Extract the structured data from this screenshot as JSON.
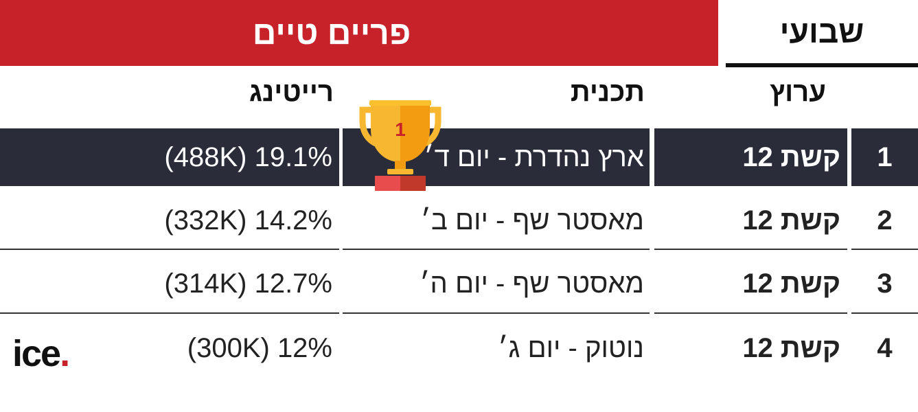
{
  "banner": {
    "title": "פריים טיים"
  },
  "tab": {
    "label": "שבועי"
  },
  "headers": {
    "channel": "ערוץ",
    "program": "תכנית",
    "rating": "רייטינג"
  },
  "rows": [
    {
      "rank": "1",
      "channel": "קשת 12",
      "program": "ארץ נהדרת - יום ד׳",
      "rating": "19.1% (488K)"
    },
    {
      "rank": "2",
      "channel": "קשת 12",
      "program": "מאסטר שף - יום ב׳",
      "rating": "14.2% (332K)"
    },
    {
      "rank": "3",
      "channel": "קשת 12",
      "program": "מאסטר שף - יום ה׳",
      "rating": "12.7% (314K)"
    },
    {
      "rank": "4",
      "channel": "קשת 12",
      "program": "נוטוק - יום ג׳",
      "rating": "12% (300K)"
    }
  ],
  "trophy": {
    "label": "1",
    "icon": "trophy-icon"
  },
  "logo": {
    "text": "ice",
    "dot": "."
  },
  "colors": {
    "banner": "#c7222a",
    "highlight_row": "#2a2d39",
    "trophy_gold": "#f7b731"
  }
}
